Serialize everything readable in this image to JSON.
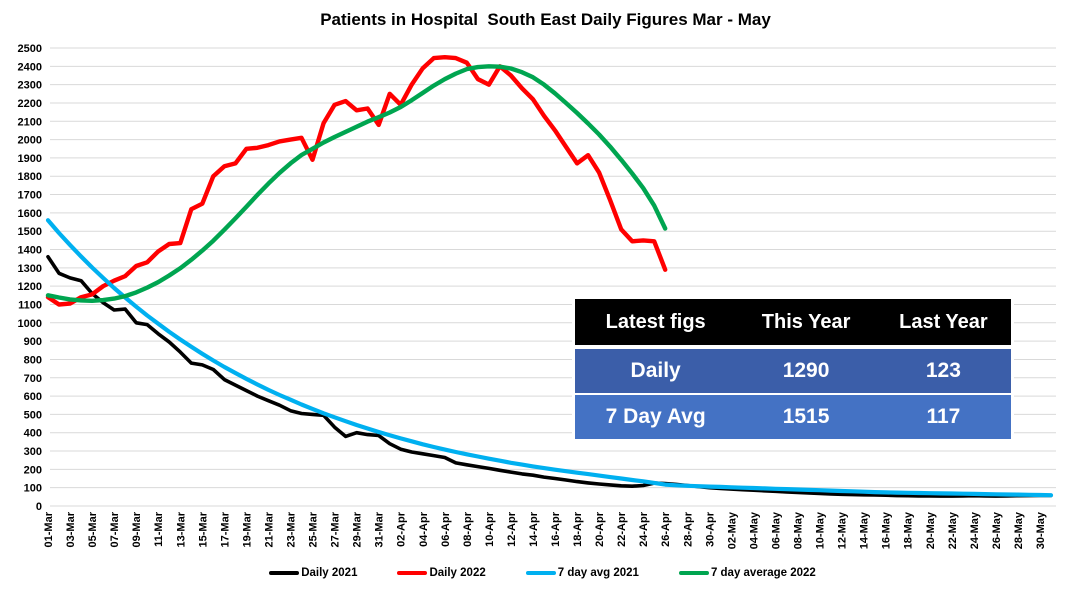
{
  "title": "Patients in Hospital  South East Daily Figures Mar - May",
  "table": {
    "header": [
      "Latest figs",
      "This Year",
      "Last Year"
    ],
    "rows": [
      {
        "label": "Daily",
        "this_year": "1290",
        "last_year": "123"
      },
      {
        "label": "7 Day Avg",
        "this_year": "1515",
        "last_year": "117"
      }
    ],
    "header_bg": "#000000",
    "row1_bg": "#3B5EA9",
    "row2_bg": "#4472C4",
    "text_color": "#FFFFFF"
  },
  "chart_data": {
    "type": "line",
    "title": "Patients in Hospital  South East Daily Figures Mar - May",
    "xlabel": "",
    "ylabel": "",
    "ylim": [
      0,
      2500
    ],
    "y_tick_step": 100,
    "grid": "horizontal",
    "gridline_color": "#D9D9D9",
    "legend_position": "bottom",
    "x_tick_labels": [
      "01-Mar",
      "03-Mar",
      "05-Mar",
      "07-Mar",
      "09-Mar",
      "11-Mar",
      "13-Mar",
      "15-Mar",
      "17-Mar",
      "19-Mar",
      "21-Mar",
      "23-Mar",
      "25-Mar",
      "27-Mar",
      "29-Mar",
      "31-Mar",
      "02-Apr",
      "04-Apr",
      "06-Apr",
      "08-Apr",
      "10-Apr",
      "12-Apr",
      "14-Apr",
      "16-Apr",
      "18-Apr",
      "20-Apr",
      "22-Apr",
      "24-Apr",
      "26-Apr",
      "28-Apr",
      "30-Apr",
      "02-May",
      "04-May",
      "06-May",
      "08-May",
      "10-May",
      "12-May",
      "14-May",
      "16-May",
      "18-May",
      "20-May",
      "22-May",
      "24-May",
      "26-May",
      "28-May",
      "30-May"
    ],
    "dates": [
      "01-Mar",
      "02-Mar",
      "03-Mar",
      "04-Mar",
      "05-Mar",
      "06-Mar",
      "07-Mar",
      "08-Mar",
      "09-Mar",
      "10-Mar",
      "11-Mar",
      "12-Mar",
      "13-Mar",
      "14-Mar",
      "15-Mar",
      "16-Mar",
      "17-Mar",
      "18-Mar",
      "19-Mar",
      "20-Mar",
      "21-Mar",
      "22-Mar",
      "23-Mar",
      "24-Mar",
      "25-Mar",
      "26-Mar",
      "27-Mar",
      "28-Mar",
      "29-Mar",
      "30-Mar",
      "31-Mar",
      "01-Apr",
      "02-Apr",
      "03-Apr",
      "04-Apr",
      "05-Apr",
      "06-Apr",
      "07-Apr",
      "08-Apr",
      "09-Apr",
      "10-Apr",
      "11-Apr",
      "12-Apr",
      "13-Apr",
      "14-Apr",
      "15-Apr",
      "16-Apr",
      "17-Apr",
      "18-Apr",
      "19-Apr",
      "20-Apr",
      "21-Apr",
      "22-Apr",
      "23-Apr",
      "24-Apr",
      "25-Apr",
      "26-Apr",
      "27-Apr",
      "28-Apr",
      "29-Apr",
      "30-Apr",
      "01-May",
      "02-May",
      "03-May",
      "04-May",
      "05-May",
      "06-May",
      "07-May",
      "08-May",
      "09-May",
      "10-May",
      "11-May",
      "12-May",
      "13-May",
      "14-May",
      "15-May",
      "16-May",
      "17-May",
      "18-May",
      "19-May",
      "20-May",
      "21-May",
      "22-May",
      "23-May",
      "24-May",
      "25-May",
      "26-May",
      "27-May",
      "28-May",
      "29-May",
      "30-May",
      "31-May"
    ],
    "series": [
      {
        "name": "Daily 2021",
        "color": "#000000",
        "stroke_width": 3.6,
        "values": [
          1360,
          1270,
          1245,
          1230,
          1160,
          1110,
          1070,
          1075,
          1000,
          990,
          940,
          895,
          840,
          780,
          770,
          745,
          690,
          660,
          630,
          600,
          575,
          550,
          520,
          505,
          500,
          495,
          430,
          380,
          400,
          390,
          385,
          340,
          310,
          295,
          285,
          275,
          265,
          235,
          225,
          215,
          205,
          195,
          185,
          175,
          168,
          158,
          150,
          142,
          133,
          126,
          120,
          115,
          110,
          108,
          112,
          125,
          123,
          118,
          112,
          106,
          100,
          96,
          92,
          89,
          86,
          83,
          80,
          77,
          74,
          71,
          69,
          66,
          64,
          62,
          61,
          60,
          59,
          57,
          56,
          55,
          55,
          54,
          54,
          55,
          56,
          55,
          54,
          55,
          56,
          57,
          58,
          58
        ]
      },
      {
        "name": "Daily 2022",
        "color": "#FF0000",
        "stroke_width": 4.4,
        "values": [
          1140,
          1100,
          1105,
          1140,
          1155,
          1200,
          1230,
          1255,
          1310,
          1330,
          1390,
          1430,
          1435,
          1620,
          1650,
          1800,
          1855,
          1870,
          1950,
          1955,
          1970,
          1990,
          2000,
          2010,
          1890,
          2090,
          2190,
          2210,
          2160,
          2170,
          2080,
          2250,
          2190,
          2300,
          2390,
          2445,
          2450,
          2445,
          2420,
          2330,
          2300,
          2400,
          2350,
          2280,
          2220,
          2130,
          2050,
          1960,
          1870,
          1915,
          1820,
          1670,
          1510,
          1445,
          1450,
          1445,
          1290
        ]
      },
      {
        "name": "7 day avg 2021",
        "color": "#00B0F0",
        "stroke_width": 4.2,
        "values": [
          1560,
          1490,
          1425,
          1362,
          1302,
          1245,
          1190,
          1138,
          1088,
          1040,
          995,
          951,
          909,
          869,
          831,
          794,
          759,
          726,
          694,
          663,
          634,
          606,
          580,
          554,
          530,
          506,
          484,
          463,
          442,
          423,
          404,
          386,
          369,
          353,
          337,
          322,
          308,
          295,
          282,
          270,
          258,
          247,
          236,
          226,
          216,
          207,
          198,
          190,
          182,
          174,
          166,
          158,
          150,
          142,
          135,
          126,
          117,
          113,
          110,
          108,
          106,
          104,
          102,
          100,
          98,
          96,
          94,
          92,
          90,
          88,
          86,
          84,
          82,
          80,
          78,
          76,
          74,
          73,
          72,
          71,
          70,
          69,
          68,
          67,
          66,
          65,
          64,
          63,
          62,
          61,
          60,
          59
        ]
      },
      {
        "name": "7 day average 2022",
        "color": "#00A550",
        "stroke_width": 4.4,
        "values": [
          1150,
          1138,
          1128,
          1122,
          1120,
          1124,
          1132,
          1146,
          1166,
          1192,
          1222,
          1258,
          1298,
          1344,
          1394,
          1448,
          1508,
          1570,
          1634,
          1698,
          1760,
          1818,
          1870,
          1916,
          1950,
          1984,
          2014,
          2042,
          2070,
          2098,
          2122,
          2148,
          2178,
          2215,
          2255,
          2295,
          2330,
          2360,
          2385,
          2396,
          2400,
          2398,
          2388,
          2368,
          2340,
          2300,
          2252,
          2200,
          2145,
          2088,
          2028,
          1962,
          1890,
          1815,
          1735,
          1640,
          1515
        ]
      }
    ]
  }
}
